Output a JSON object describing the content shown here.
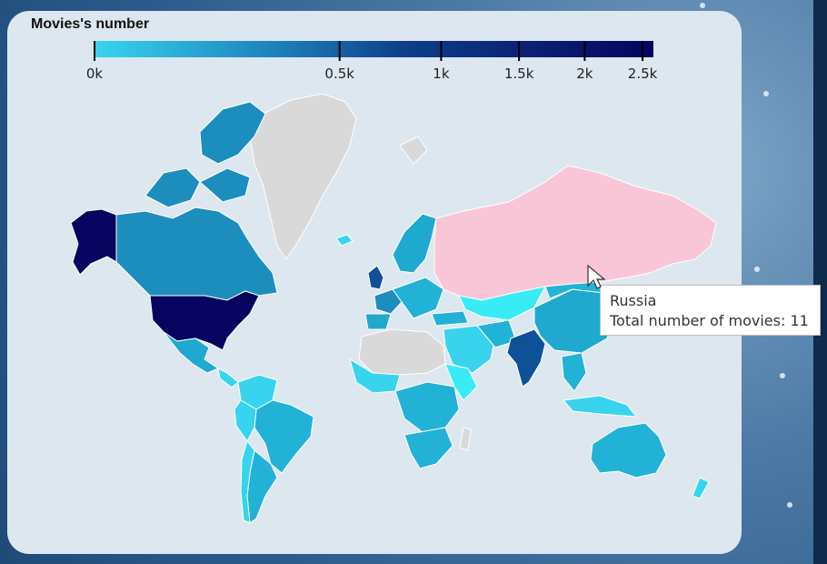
{
  "legend": {
    "title": "Movies's number",
    "ticks": [
      {
        "label": "0k",
        "value": 0
      },
      {
        "label": "0.5k",
        "value": 500
      },
      {
        "label": "1k",
        "value": 1000
      },
      {
        "label": "1.5k",
        "value": 1500
      },
      {
        "label": "2k",
        "value": 2000
      },
      {
        "label": "2.5k",
        "value": 2500
      }
    ],
    "color_min": "#38d4ee",
    "color_max": "#06045e"
  },
  "tooltip": {
    "country": "Russia",
    "text": "Total number of movies: 11"
  },
  "colors": {
    "panel": "#dde7ef",
    "no_data": "#d9d9d9",
    "highlight": "#f9c6d7",
    "border": "#ffffff"
  },
  "chart_data": {
    "type": "choropleth",
    "metric": "Total number of movies",
    "scale_range": [
      0,
      2600
    ],
    "regions": [
      {
        "name": "United States",
        "level": "highest"
      },
      {
        "name": "India",
        "level": "high"
      },
      {
        "name": "United Kingdom",
        "level": "high"
      },
      {
        "name": "Canada",
        "level": "medium"
      },
      {
        "name": "Russia",
        "value": 11,
        "state": "hovered"
      },
      {
        "name": "Greenland",
        "state": "no data"
      }
    ]
  }
}
